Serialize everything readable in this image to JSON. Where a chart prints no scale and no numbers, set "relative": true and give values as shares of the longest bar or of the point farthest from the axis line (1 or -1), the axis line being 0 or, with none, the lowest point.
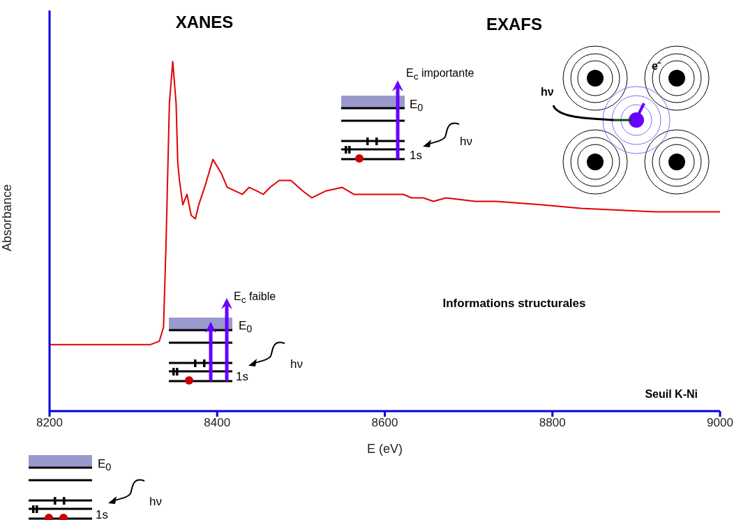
{
  "chart_data": {
    "type": "line",
    "relative": true,
    "xlabel": "E (eV)",
    "ylabel": "Absorbance",
    "xlim": [
      8200,
      9000
    ],
    "xticks": [
      8200,
      8400,
      8600,
      8800,
      9000
    ],
    "color": "#e00000",
    "x": [
      8200,
      8320,
      8331,
      8336,
      8339,
      8343,
      8347,
      8351,
      8353,
      8355,
      8359,
      8364,
      8369,
      8374,
      8378,
      8385,
      8395,
      8405,
      8412,
      8430,
      8438,
      8447,
      8455,
      8463,
      8474,
      8488,
      8502,
      8513,
      8530,
      8549,
      8563,
      8622,
      8632,
      8646,
      8658,
      8673,
      8708,
      8733,
      8788,
      8834,
      8923,
      9000
    ],
    "values": [
      0.19,
      0.19,
      0.2,
      0.24,
      0.48,
      0.88,
      1.0,
      0.88,
      0.71,
      0.66,
      0.59,
      0.62,
      0.56,
      0.55,
      0.59,
      0.64,
      0.72,
      0.68,
      0.64,
      0.62,
      0.64,
      0.63,
      0.62,
      0.64,
      0.66,
      0.66,
      0.63,
      0.61,
      0.63,
      0.64,
      0.62,
      0.62,
      0.61,
      0.61,
      0.6,
      0.61,
      0.6,
      0.6,
      0.59,
      0.58,
      0.57,
      0.57
    ],
    "annotations": [
      "XANES",
      "EXAFS",
      "Informations structurales",
      "Seuil K-Ni",
      "E$_{c}$ importante",
      "E$_{0}$",
      "1s",
      "hν",
      "hν",
      "e$^{-}$",
      "E$_{c}$ faible",
      "E$_{0}$",
      "1s",
      "hν",
      "E$_{0}$",
      "1s",
      "hν"
    ]
  }
}
